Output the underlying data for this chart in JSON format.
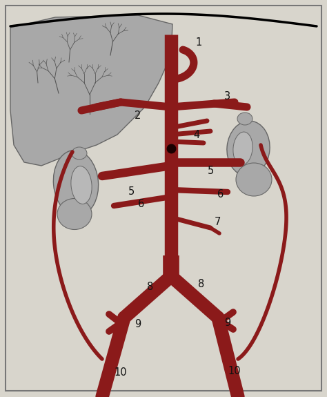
{
  "bg_color": "#d8d5cc",
  "border_color": "#777777",
  "aorta_color": "#8B1A1A",
  "organ_color": "#a8a8a8",
  "organ_edge": "#666666",
  "text_color": "#111111",
  "figsize": [
    4.74,
    5.75
  ],
  "dpi": 100
}
